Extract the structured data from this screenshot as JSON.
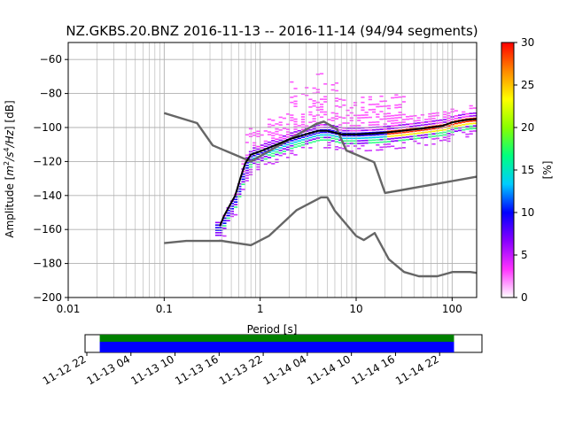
{
  "chart_data": [
    {
      "type": "heatmap",
      "title": "NZ.GKBS.20.BNZ   2016-11-13 -- 2016-11-14  (94/94 segments)",
      "xlabel": "Period [s]",
      "ylabel_main": "Amplitude [",
      "ylabel_sup1": "m",
      "ylabel_sup2": "2",
      "ylabel_sup3": "/s",
      "ylabel_sup4": "4",
      "ylabel_sup5": "/Hz",
      "ylabel_tail": "] [dB]",
      "xscale": "log",
      "xlim": [
        0.01,
        180
      ],
      "ylim": [
        -200,
        -50
      ],
      "grid": true,
      "xticks": [
        {
          "value": 0.01,
          "label": "0.01"
        },
        {
          "value": 0.1,
          "label": "0.1"
        },
        {
          "value": 1,
          "label": "1"
        },
        {
          "value": 10,
          "label": "10"
        },
        {
          "value": 100,
          "label": "100"
        }
      ],
      "yticks": [
        {
          "value": -200,
          "label": "−200"
        },
        {
          "value": -180,
          "label": "−180"
        },
        {
          "value": -160,
          "label": "−160"
        },
        {
          "value": -140,
          "label": "−140"
        },
        {
          "value": -120,
          "label": "−120"
        },
        {
          "value": -100,
          "label": "−100"
        },
        {
          "value": -80,
          "label": "−80"
        },
        {
          "value": -60,
          "label": "−60"
        }
      ],
      "colorbar": {
        "label": "[%]",
        "range": [
          0,
          30
        ],
        "ticks": [
          {
            "value": 0,
            "label": "0"
          },
          {
            "value": 5,
            "label": "5"
          },
          {
            "value": 10,
            "label": "10"
          },
          {
            "value": 15,
            "label": "15"
          },
          {
            "value": 20,
            "label": "20"
          },
          {
            "value": 25,
            "label": "25"
          },
          {
            "value": 30,
            "label": "30"
          }
        ],
        "colors": [
          "#ffffff",
          "#ff33ff",
          "#8800ff",
          "#0000ff",
          "#00ccff",
          "#00ff80",
          "#88ff00",
          "#ffff00",
          "#ff8800",
          "#ff0000"
        ]
      },
      "series": [
        {
          "role": "noise-model-high",
          "color": "#666666",
          "x": [
            0.1,
            0.22,
            0.32,
            0.8,
            3.8,
            4.6,
            6.3,
            7.9,
            15.4,
            20,
            354.8
          ],
          "y": [
            -91.5,
            -97.4,
            -110.5,
            -120,
            -98,
            -96.5,
            -101,
            -113.5,
            -120.4,
            -138.5,
            -126
          ]
        },
        {
          "role": "noise-model-low",
          "color": "#666666",
          "x": [
            0.1,
            0.17,
            0.4,
            0.8,
            1.24,
            2.4,
            4.3,
            5.0,
            6.0,
            10.0,
            12.0,
            15.6,
            21.9,
            31.6,
            45.0,
            70.0,
            101.0,
            154.0,
            180.0
          ],
          "y": [
            -168,
            -166.7,
            -166.7,
            -169.2,
            -163.7,
            -148.6,
            -141.1,
            -141.1,
            -149.0,
            -163.8,
            -166.2,
            -162.1,
            -177.5,
            -185.0,
            -187.5,
            -187.5,
            -185.0,
            -185.0,
            -185.5
          ]
        },
        {
          "role": "mean-psd",
          "color": "#000000",
          "x": [
            0.38,
            0.42,
            0.48,
            0.55,
            0.62,
            0.7,
            0.8,
            1.0,
            1.5,
            2.0,
            3.0,
            4.0,
            5.0,
            6.0,
            7.0,
            8.0,
            10.0,
            15.0,
            20.0,
            30.0,
            50.0,
            80.0,
            100.0,
            140.0,
            180.0
          ],
          "y": [
            -158,
            -152,
            -146,
            -140,
            -130,
            -121,
            -116,
            -114,
            -110,
            -107,
            -104,
            -102,
            -102,
            -103,
            -104,
            -104,
            -104,
            -103.5,
            -103,
            -102,
            -100.5,
            -99,
            -97,
            -95.5,
            -95
          ]
        }
      ]
    },
    {
      "type": "timeline",
      "tick_labels": [
        "11-12 22",
        "11-13 04",
        "11-13 10",
        "11-13 16",
        "11-13 22",
        "11-14 04",
        "11-14 10",
        "11-14 16",
        "11-14 22"
      ],
      "range_hours": [
        0,
        54
      ],
      "data_start_hours": 2.0,
      "data_end_hours": 50.2,
      "bands": [
        {
          "role": "coverage",
          "color": "#008000"
        },
        {
          "role": "segments",
          "color": "#0000ff"
        }
      ]
    }
  ]
}
